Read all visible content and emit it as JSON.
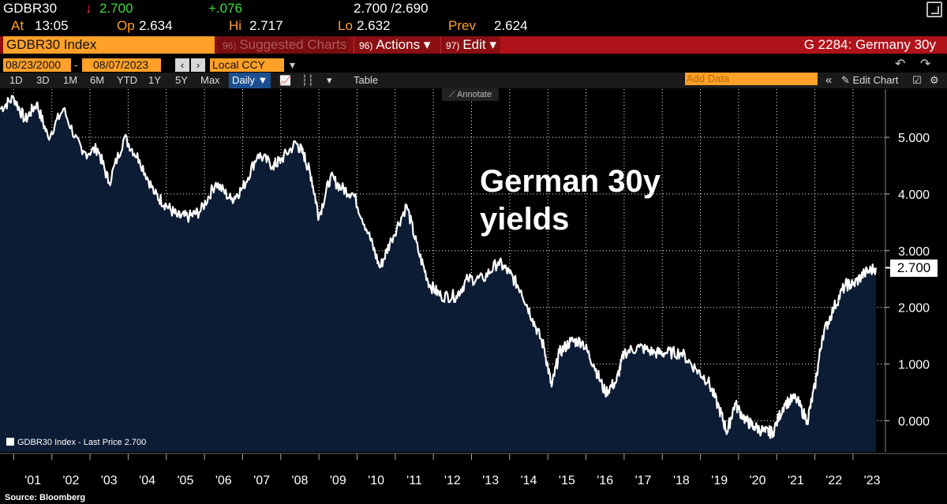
{
  "quote": {
    "ticker": "GDBR30",
    "arrow": "↓",
    "last": "2.700",
    "change": "+.076",
    "bid_ask": "2.700 /2.690",
    "time_label": "At",
    "time": "13:05",
    "open_label": "Op",
    "open": "2.634",
    "high_label": "Hi",
    "high": "2.717",
    "low_label": "Lo",
    "low": "2.632",
    "prev_label": "Prev",
    "prev": "2.624"
  },
  "titlebar": {
    "ticker_name": "GDBR30 Index",
    "suggested_num": "96)",
    "suggested": "Suggested Charts",
    "actions_num": "96)",
    "actions": "Actions ▾",
    "edit_num": "97)",
    "edit": "Edit ▾",
    "right": "G 2284: Germany 30y"
  },
  "daterow": {
    "start": "08/23/2000",
    "dash": "-",
    "end": "08/07/2023",
    "prev": "‹",
    "next": "›",
    "currency": "Local CCY",
    "currency_arrow": "▾",
    "undo": "↶",
    "redo": "↷"
  },
  "toolbar": {
    "ranges": [
      "1D",
      "3D",
      "1M",
      "6M",
      "YTD",
      "1Y",
      "5Y",
      "Max"
    ],
    "frequency": "Daily ▼",
    "line_icon": "📈",
    "bar_icon": "┆┆",
    "chevron": "▾",
    "table": "Table",
    "add_data": "Add Data",
    "collapse": "«",
    "edit_chart": "✎ Edit Chart",
    "pin": "☑",
    "gear": "⚙"
  },
  "annotate": "⟋ Annotate",
  "headline_line1": "German 30y",
  "headline_line2": "yields",
  "legend": "GDBR30 Index - Last Price 2.700",
  "last_value_label": "2.700",
  "source": "Source: Bloomberg",
  "colors": {
    "fill": "#0c1c34",
    "line": "#ffffff",
    "grid": "#ffffff",
    "accent": "#ffa028"
  },
  "chart_data": {
    "type": "area",
    "title": "German 30y yields",
    "series_name": "GDBR30 Index - Last Price",
    "x": [
      2000.64,
      2001.0,
      2001.3,
      2001.6,
      2001.9,
      2002.3,
      2002.8,
      2003.2,
      2003.5,
      2003.9,
      2004.3,
      2004.7,
      2005.0,
      2005.3,
      2005.6,
      2005.9,
      2006.3,
      2006.7,
      2007.0,
      2007.4,
      2007.8,
      2008.0,
      2008.4,
      2008.6,
      2008.8,
      2009.0,
      2009.3,
      2009.6,
      2009.9,
      2010.3,
      2010.6,
      2010.9,
      2011.3,
      2011.6,
      2011.9,
      2012.2,
      2012.6,
      2012.9,
      2013.3,
      2013.7,
      2014.0,
      2014.3,
      2014.6,
      2014.9,
      2015.1,
      2015.3,
      2015.6,
      2015.9,
      2016.2,
      2016.5,
      2016.8,
      2017.0,
      2017.4,
      2017.8,
      2018.1,
      2018.5,
      2018.9,
      2019.2,
      2019.5,
      2019.7,
      2019.9,
      2020.2,
      2020.4,
      2020.7,
      2020.9,
      2021.2,
      2021.5,
      2021.8,
      2022.0,
      2022.2,
      2022.5,
      2022.8,
      2023.0,
      2023.3,
      2023.6
    ],
    "values": [
      5.5,
      5.7,
      5.3,
      5.6,
      5.0,
      5.5,
      4.7,
      4.8,
      4.2,
      5.0,
      4.6,
      4.0,
      3.8,
      3.6,
      3.6,
      3.7,
      4.2,
      3.9,
      4.1,
      4.7,
      4.5,
      4.6,
      4.9,
      4.7,
      4.3,
      3.6,
      4.3,
      4.1,
      4.0,
      3.3,
      2.7,
      3.2,
      3.8,
      3.0,
      2.4,
      2.2,
      2.2,
      2.5,
      2.5,
      2.8,
      2.6,
      2.3,
      1.8,
      1.3,
      0.6,
      1.2,
      1.4,
      1.4,
      1.0,
      0.5,
      0.7,
      1.2,
      1.3,
      1.2,
      1.2,
      1.2,
      0.9,
      0.7,
      0.2,
      -0.2,
      0.3,
      0.0,
      -0.1,
      -0.2,
      -0.2,
      0.3,
      0.4,
      0.0,
      0.6,
      1.5,
      2.0,
      2.4,
      2.4,
      2.6,
      2.7
    ],
    "last": 2.7,
    "xlim": [
      2000.64,
      2023.85
    ],
    "ylim": [
      -0.55,
      5.85
    ],
    "yticks": [
      0,
      1,
      2,
      3,
      4,
      5
    ],
    "ytick_labels": [
      "0.000",
      "1.000",
      "2.000",
      "3.000",
      "4.000",
      "5.000"
    ],
    "xtick_labels": [
      "'01",
      "'02",
      "'03",
      "'04",
      "'05",
      "'06",
      "'07",
      "'08",
      "'09",
      "'10",
      "'11",
      "'12",
      "'13",
      "'14",
      "'15",
      "'16",
      "'17",
      "'18",
      "'19",
      "'20",
      "'21",
      "'22",
      "'23"
    ],
    "xlabel": "",
    "ylabel": "",
    "grid": true,
    "legend_position": "bottom-left"
  }
}
